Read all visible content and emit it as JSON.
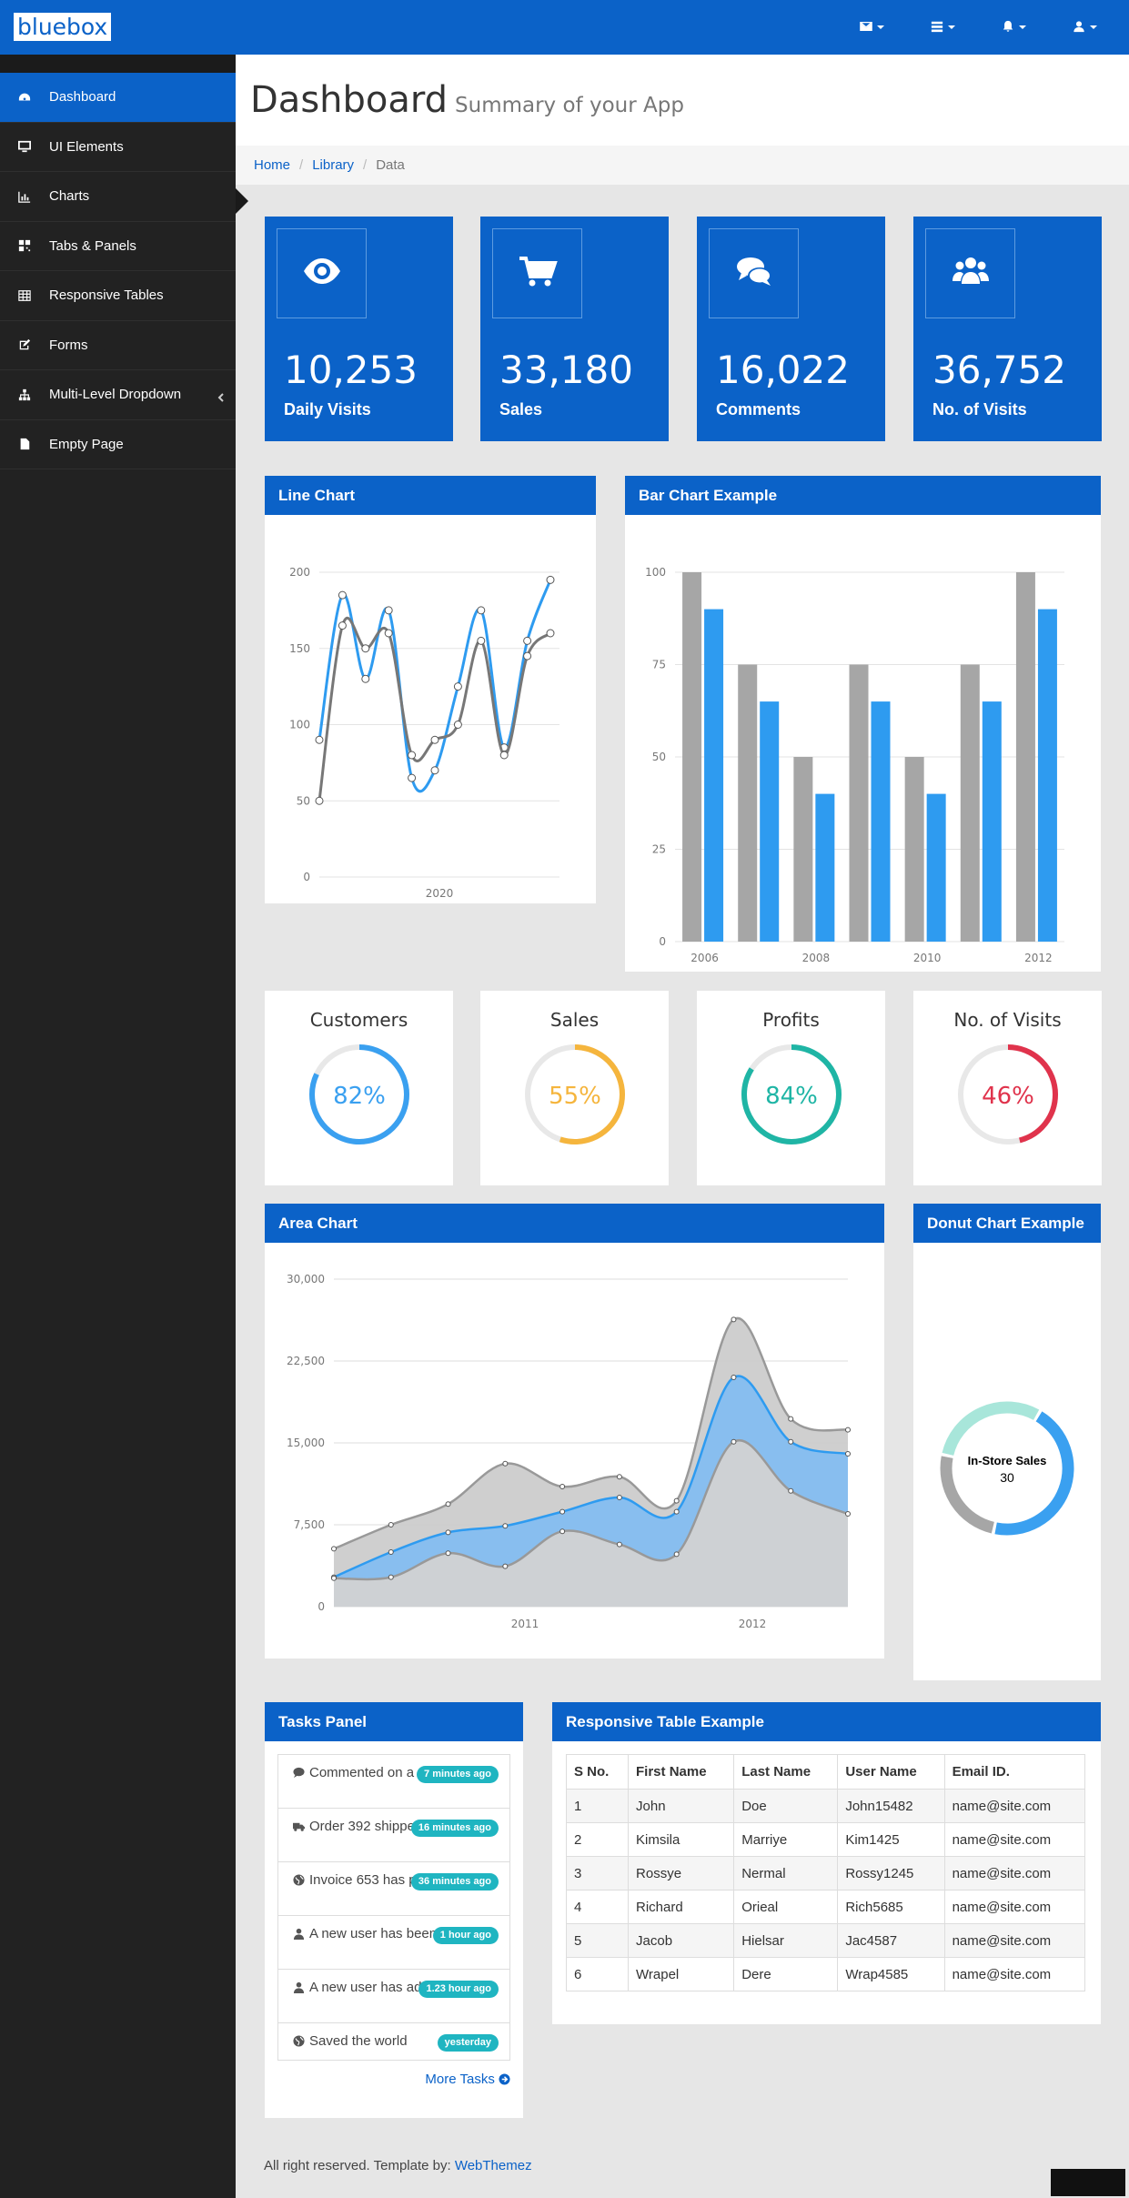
{
  "brand": "bluebox",
  "topnav": [
    {
      "icon": "envelope-icon"
    },
    {
      "icon": "tasks-icon"
    },
    {
      "icon": "bell-icon"
    },
    {
      "icon": "user-icon"
    }
  ],
  "sidebar": {
    "items": [
      {
        "label": "Dashboard",
        "icon": "dashboard-icon",
        "active": true
      },
      {
        "label": "UI Elements",
        "icon": "desktop-icon"
      },
      {
        "label": "Charts",
        "icon": "bar-chart-icon"
      },
      {
        "label": "Tabs & Panels",
        "icon": "qrcode-icon"
      },
      {
        "label": "Responsive Tables",
        "icon": "table-icon"
      },
      {
        "label": "Forms",
        "icon": "edit-icon"
      },
      {
        "label": "Multi-Level Dropdown",
        "icon": "sitemap-icon"
      },
      {
        "label": "Empty Page",
        "icon": "file-icon"
      }
    ]
  },
  "header": {
    "title": "Dashboard",
    "subtitle": "Summary of your App"
  },
  "breadcrumb": {
    "home": "Home",
    "library": "Library",
    "current": "Data",
    "separator": "/"
  },
  "tiles": [
    {
      "value": "10,253",
      "label": "Daily Visits",
      "icon": "eye-icon"
    },
    {
      "value": "33,180",
      "label": "Sales",
      "icon": "cart-icon"
    },
    {
      "value": "16,022",
      "label": "Comments",
      "icon": "comments-icon"
    },
    {
      "value": "36,752",
      "label": "No. of Visits",
      "icon": "users-icon"
    }
  ],
  "panels": {
    "line": "Line Chart",
    "bar": "Bar Chart Example",
    "area": "Area Chart",
    "donut": "Donut Chart Example",
    "tasks": "Tasks Panel",
    "table": "Responsive Table Example"
  },
  "gauges": [
    {
      "title": "Customers",
      "value": "82%",
      "pct": 82,
      "color": "#3aa0f0"
    },
    {
      "title": "Sales",
      "value": "55%",
      "pct": 55,
      "color": "#f5b53d"
    },
    {
      "title": "Profits",
      "value": "84%",
      "pct": 84,
      "color": "#1fb5a5"
    },
    {
      "title": "No. of Visits",
      "value": "46%",
      "pct": 46,
      "color": "#e0334c"
    }
  ],
  "chart_data": [
    {
      "type": "line",
      "title": "Line Chart",
      "x_tick_labels": [
        "2020"
      ],
      "ylim": [
        0,
        200
      ],
      "y_ticks": [
        0,
        50,
        100,
        150,
        200
      ],
      "grid": true,
      "series": [
        {
          "color": "#2e9bf0",
          "values": [
            90,
            185,
            130,
            175,
            65,
            70,
            125,
            175,
            85,
            155,
            195
          ]
        },
        {
          "color": "#777777",
          "values": [
            50,
            165,
            150,
            160,
            80,
            90,
            100,
            155,
            80,
            145,
            160
          ]
        }
      ]
    },
    {
      "type": "bar",
      "title": "Bar Chart Example",
      "categories": [
        "2006",
        "2007",
        "2008",
        "2009",
        "2010",
        "2011",
        "2012"
      ],
      "x_tick_labels": [
        "2006",
        "",
        "2008",
        "",
        "2010",
        "",
        "2012"
      ],
      "ylim": [
        0,
        100
      ],
      "y_ticks": [
        0,
        25,
        50,
        75,
        100
      ],
      "series": [
        {
          "color": "#a6a6a6",
          "values": [
            100,
            75,
            50,
            75,
            50,
            75,
            100
          ]
        },
        {
          "color": "#2e9bf0",
          "values": [
            90,
            65,
            40,
            65,
            40,
            65,
            90
          ]
        }
      ]
    },
    {
      "type": "area",
      "title": "Area Chart",
      "x_tick_labels": [
        "2011",
        "2012"
      ],
      "ylim": [
        0,
        30000
      ],
      "y_tick_labels": [
        "0",
        "7,500",
        "15,000",
        "22,500",
        "30,000"
      ],
      "series": [
        {
          "color": "#cccccc",
          "values": [
            5300,
            7500,
            9400,
            13100,
            11000,
            11900,
            9700,
            26300,
            17200,
            16200
          ]
        },
        {
          "color": "#84bdf0",
          "values": [
            2700,
            5000,
            6800,
            7400,
            8700,
            10000,
            8700,
            21000,
            15100,
            14000
          ]
        },
        {
          "color": "#d2d2d2",
          "values": [
            2600,
            2700,
            4900,
            3700,
            6900,
            5700,
            4800,
            15100,
            10600,
            8500
          ]
        }
      ]
    },
    {
      "type": "pie",
      "title": "Donut Chart Example",
      "center_label": "In-Store Sales",
      "center_value": "30",
      "slices": [
        {
          "color": "#3aa0f0",
          "value": 45
        },
        {
          "color": "#a6a6a6",
          "value": 25
        },
        {
          "color": "#a8e6da",
          "value": 30
        }
      ]
    }
  ],
  "tasks": [
    {
      "icon": "comment-icon",
      "text": "Commented on a post",
      "badge": "7 minutes ago"
    },
    {
      "icon": "truck-icon",
      "text": "Order 392 shipped",
      "badge": "16 minutes ago"
    },
    {
      "icon": "globe-icon",
      "text": "Invoice 653 has paid",
      "badge": "36 minutes ago"
    },
    {
      "icon": "user-icon",
      "text": "A new user has been added",
      "badge": "1 hour ago"
    },
    {
      "icon": "user-icon",
      "text": "A new user has added",
      "badge": "1.23 hour ago"
    },
    {
      "icon": "globe-icon",
      "text": "Saved the world",
      "badge": "yesterday"
    }
  ],
  "more_tasks": "More Tasks",
  "table": {
    "headers": [
      "S No.",
      "First Name",
      "Last Name",
      "User Name",
      "Email ID."
    ],
    "rows": [
      [
        "1",
        "John",
        "Doe",
        "John15482",
        "name@site.com"
      ],
      [
        "2",
        "Kimsila",
        "Marriye",
        "Kim1425",
        "name@site.com"
      ],
      [
        "3",
        "Rossye",
        "Nermal",
        "Rossy1245",
        "name@site.com"
      ],
      [
        "4",
        "Richard",
        "Orieal",
        "Rich5685",
        "name@site.com"
      ],
      [
        "5",
        "Jacob",
        "Hielsar",
        "Jac4587",
        "name@site.com"
      ],
      [
        "6",
        "Wrapel",
        "Dere",
        "Wrap4585",
        "name@site.com"
      ]
    ]
  },
  "footer": {
    "text": "All right reserved. Template by: ",
    "link": "WebThemez"
  }
}
